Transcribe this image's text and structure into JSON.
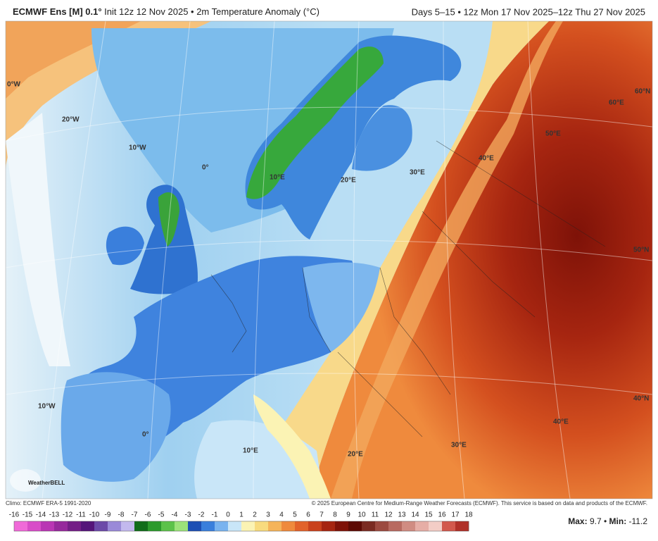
{
  "header": {
    "model": "ECMWF Ens [M] 0.1°",
    "init": "Init 12z 12 Nov 2025 • 2m Temperature Anomaly (°C)",
    "period": "Days 5–15 • 12z Mon 17 Nov 2025–12z Thu 27 Nov 2025"
  },
  "map": {
    "labels": [
      "0°W",
      "20°W",
      "10°W",
      "0°",
      "10°E",
      "20°E",
      "30°E",
      "40°E",
      "50°E",
      "60°E",
      "60°N",
      "50°N",
      "10°W",
      "0°",
      "10°E",
      "20°E",
      "30°E",
      "40°E",
      "40°N"
    ],
    "watermark": "WeatherBELL"
  },
  "footer": {
    "climo": "Climo: ECMWF ERA-5 1991-2020",
    "copyright": "© 2025 European Centre for Medium-Range Weather Forecasts (ECMWF). This service is based on data and products of the ECMWF."
  },
  "colorbar": {
    "ticks": [
      -16,
      -15,
      -14,
      -13,
      -12,
      -11,
      -10,
      -9,
      -8,
      -7,
      -6,
      -5,
      -4,
      -3,
      -2,
      -1,
      0,
      1,
      2,
      3,
      4,
      5,
      6,
      7,
      8,
      9,
      10,
      11,
      12,
      13,
      14,
      15,
      16,
      17,
      18
    ],
    "colors": [
      "#f06ad8",
      "#d84cc8",
      "#b936b4",
      "#96299c",
      "#741e86",
      "#55157a",
      "#6c4aa8",
      "#9a8ad8",
      "#c3b9ee",
      "#116d1a",
      "#2c9a2c",
      "#5cc24a",
      "#9ce27a",
      "#1d4fb4",
      "#3a7fdc",
      "#79b3ef",
      "#c9e6f8",
      "#fbf3b4",
      "#f8db7e",
      "#f5b45a",
      "#ef8a3d",
      "#e2622a",
      "#c9411b",
      "#a62510",
      "#7e1208",
      "#5c0a04",
      "#7a2b22",
      "#9c4a40",
      "#b86a60",
      "#d08c82",
      "#e6aea6",
      "#f3cdc6",
      "#d2584c",
      "#b03028"
    ]
  },
  "stats": {
    "max_label": "Max:",
    "max": 9.7,
    "separator": "•",
    "min_label": "Min:",
    "min": -11.2
  }
}
